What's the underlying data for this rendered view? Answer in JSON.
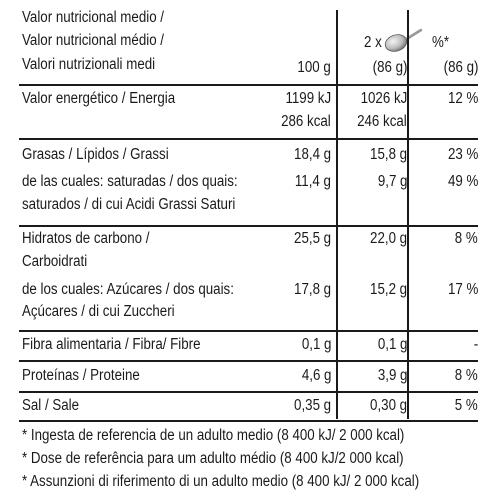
{
  "header": {
    "line1": "Valor nutricional medio /",
    "line2": "Valor nutricional médio /",
    "line3": "Valori nutrizionali medi",
    "col_100g": "100 g",
    "serving_prefix": "2 x",
    "serving_icon": "spoon-icon",
    "serving_weight": "(86 g)",
    "pct_symbol": "%*",
    "pct_weight": "(86 g)"
  },
  "rows": [
    {
      "label": [
        "Valor energético / Energia"
      ],
      "per100": [
        "1199 kJ",
        "286 kcal"
      ],
      "serving": [
        "1026 kJ",
        "246 kcal"
      ],
      "pct": [
        "12 %"
      ]
    },
    {
      "label": [
        "Grasas / Lípidos / Grassi"
      ],
      "per100": [
        "18,4 g"
      ],
      "serving": [
        "15,8 g"
      ],
      "pct": [
        "23 %"
      ]
    },
    {
      "label": [
        "de las cuales: saturadas / dos quais:",
        "saturados /  di cui Acidi Grassi Saturi"
      ],
      "per100": [
        "11,4 g"
      ],
      "serving": [
        "9,7 g"
      ],
      "pct": [
        "49 %"
      ]
    },
    {
      "label": [
        "Hidratos de carbono /",
        "Carboidrati"
      ],
      "per100": [
        "25,5 g"
      ],
      "serving": [
        "22,0 g"
      ],
      "pct": [
        "8 %"
      ]
    },
    {
      "label": [
        "de los cuales: Azúcares / dos quais:",
        "Açúcares / di cui Zuccheri"
      ],
      "per100": [
        "17,8 g"
      ],
      "serving": [
        "15,2 g"
      ],
      "pct": [
        "17 %"
      ]
    },
    {
      "label": [
        "Fibra alimentaria / Fibra/ Fibre"
      ],
      "per100": [
        "0,1 g"
      ],
      "serving": [
        "0,1 g"
      ],
      "pct": [
        "-"
      ]
    },
    {
      "label": [
        "Proteínas / Proteine"
      ],
      "per100": [
        "4,6 g"
      ],
      "serving": [
        "3,9 g"
      ],
      "pct": [
        "8 %"
      ]
    },
    {
      "label": [
        "Sal / Sale"
      ],
      "per100": [
        "0,35 g"
      ],
      "serving": [
        "0,30 g"
      ],
      "pct": [
        "5 %"
      ]
    }
  ],
  "footnotes": [
    "* Ingesta de referencia de un adulto medio (8 400 kJ/ 2 000 kcal)",
    "* Dose de referência para um adulto médio (8 400 kJ/2 000 kcal)",
    "* Assunzioni di riferimento di un adulto medio (8 400 kJ/ 2 000 kcal)"
  ]
}
